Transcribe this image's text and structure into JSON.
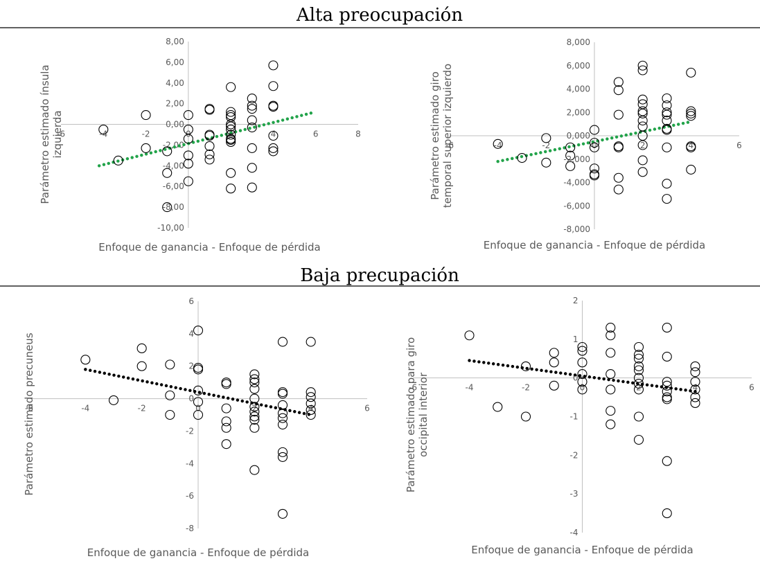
{
  "sections": {
    "top_title": "Alta preocupación",
    "bottom_title": "Baja precupación"
  },
  "chart_data": [
    {
      "type": "scatter",
      "title": "",
      "xlabel": "Enfoque de ganancia - Enfoque de pérdida",
      "ylabel_lines": [
        "Parámetro estimado ínsula",
        "izquierda"
      ],
      "xlim": [
        -6,
        8
      ],
      "ylim": [
        -10,
        8
      ],
      "x_ticks": [
        -6,
        -4,
        -2,
        0,
        2,
        4,
        6,
        8
      ],
      "x_tick_labels": [
        "-6",
        "-4",
        "-2",
        "0",
        "2",
        "4",
        "6",
        "8"
      ],
      "y_ticks": [
        -10,
        -8,
        -6,
        -4,
        -2,
        0,
        2,
        4,
        6,
        8
      ],
      "y_tick_labels": [
        "-10,00",
        "-8,00",
        "-6,00",
        "-4,00",
        "-2,00",
        "0,00",
        "2,00",
        "4,00",
        "6,00",
        "8,00"
      ],
      "trend_color": "#22a34a",
      "trendline": {
        "x": [
          -4.2,
          5.8
        ],
        "y": [
          -4.0,
          1.1
        ]
      },
      "points": [
        [
          -4,
          -0.5
        ],
        [
          -3.3,
          -3.5
        ],
        [
          -2,
          0.9
        ],
        [
          -2,
          -2.3
        ],
        [
          -1,
          -2.6
        ],
        [
          -1,
          -4.7
        ],
        [
          -1,
          -8.0
        ],
        [
          0,
          0.9
        ],
        [
          0,
          -0.5
        ],
        [
          0,
          -1.4
        ],
        [
          0,
          -3.0
        ],
        [
          0,
          -3.8
        ],
        [
          0,
          -5.5
        ],
        [
          1,
          1.5
        ],
        [
          1,
          1.4
        ],
        [
          1,
          -1.0
        ],
        [
          1,
          -1.1
        ],
        [
          1,
          -2.1
        ],
        [
          1,
          -2.9
        ],
        [
          1,
          -3.4
        ],
        [
          2,
          3.6
        ],
        [
          2,
          1.2
        ],
        [
          2,
          0.9
        ],
        [
          2,
          0.7
        ],
        [
          2,
          0.0
        ],
        [
          2,
          -0.2
        ],
        [
          2,
          -0.5
        ],
        [
          2,
          -1.0
        ],
        [
          2,
          -1.4
        ],
        [
          2,
          -1.5
        ],
        [
          2,
          -1.7
        ],
        [
          2,
          -4.7
        ],
        [
          2,
          -6.2
        ],
        [
          3,
          2.5
        ],
        [
          3,
          1.8
        ],
        [
          3,
          1.5
        ],
        [
          3,
          0.4
        ],
        [
          3,
          -0.3
        ],
        [
          3,
          -2.3
        ],
        [
          3,
          -4.2
        ],
        [
          3,
          -6.1
        ],
        [
          4,
          5.7
        ],
        [
          4,
          3.7
        ],
        [
          4,
          1.8
        ],
        [
          4,
          1.7
        ],
        [
          4,
          -1.1
        ],
        [
          4,
          -2.3
        ],
        [
          4,
          -2.6
        ]
      ]
    },
    {
      "type": "scatter",
      "title": "",
      "xlabel": "Enfoque de ganancia - Enfoque de pérdida",
      "ylabel_lines": [
        "Parámetro estimado giro",
        "temporal superior izquierdo"
      ],
      "xlim": [
        -6,
        6
      ],
      "ylim": [
        -8,
        8
      ],
      "x_ticks": [
        -6,
        -4,
        -2,
        0,
        2,
        4,
        6
      ],
      "x_tick_labels": [
        "-6",
        "-4",
        "-2",
        "0",
        "2",
        "4",
        "6"
      ],
      "y_ticks": [
        -8,
        -6,
        -4,
        -2,
        0,
        2,
        4,
        6,
        8
      ],
      "y_tick_labels": [
        "-8,000",
        "-6,000",
        "-4,000",
        "-2,000",
        "0,000",
        "2,000",
        "4,000",
        "6,000",
        "8,000"
      ],
      "trend_color": "#22a34a",
      "trendline": {
        "x": [
          -4,
          4
        ],
        "y": [
          -2.2,
          1.2
        ]
      },
      "points": [
        [
          -4,
          -0.7
        ],
        [
          -3,
          -1.9
        ],
        [
          -2,
          -0.2
        ],
        [
          -2,
          -2.3
        ],
        [
          -1,
          -1.0
        ],
        [
          -1,
          -1.7
        ],
        [
          -1,
          -2.6
        ],
        [
          0,
          0.5
        ],
        [
          0,
          -0.6
        ],
        [
          0,
          -1.0
        ],
        [
          0,
          -2.8
        ],
        [
          0,
          -3.3
        ],
        [
          0,
          -3.4
        ],
        [
          1,
          4.6
        ],
        [
          1,
          3.9
        ],
        [
          1,
          1.8
        ],
        [
          1,
          -0.9
        ],
        [
          1,
          -1.0
        ],
        [
          1,
          -3.6
        ],
        [
          1,
          -4.6
        ],
        [
          2,
          6.0
        ],
        [
          2,
          5.6
        ],
        [
          2,
          3.1
        ],
        [
          2,
          2.7
        ],
        [
          2,
          2.1
        ],
        [
          2,
          1.9
        ],
        [
          2,
          1.3
        ],
        [
          2,
          0.8
        ],
        [
          2,
          0.0
        ],
        [
          2,
          -0.8
        ],
        [
          2,
          -2.1
        ],
        [
          2,
          -3.1
        ],
        [
          3,
          3.2
        ],
        [
          3,
          2.6
        ],
        [
          3,
          2.0
        ],
        [
          3,
          1.8
        ],
        [
          3,
          1.3
        ],
        [
          3,
          0.6
        ],
        [
          3,
          0.5
        ],
        [
          3,
          -1.0
        ],
        [
          3,
          -4.1
        ],
        [
          3,
          -5.4
        ],
        [
          4,
          5.4
        ],
        [
          4,
          2.1
        ],
        [
          4,
          1.9
        ],
        [
          4,
          1.7
        ],
        [
          4,
          -0.9
        ],
        [
          4,
          -1.0
        ],
        [
          4,
          -2.9
        ]
      ]
    },
    {
      "type": "scatter",
      "title": "",
      "xlabel": "Enfoque de ganancia - Enfoque de pérdida",
      "ylabel_lines": [
        "Parámetro estimado precuneus"
      ],
      "xlim": [
        -6,
        6
      ],
      "ylim": [
        -8,
        6
      ],
      "x_ticks": [
        -6,
        -4,
        -2,
        0,
        2,
        4,
        6
      ],
      "x_tick_labels": [
        "-6",
        "-4",
        "-2",
        "0",
        "2",
        "4",
        "6"
      ],
      "y_ticks": [
        -8,
        -6,
        -4,
        -2,
        0,
        2,
        4,
        6
      ],
      "y_tick_labels": [
        "-8",
        "-6",
        "-4",
        "-2",
        "0",
        "2",
        "4",
        "6"
      ],
      "trend_color": "#000000",
      "trendline": {
        "x": [
          -4,
          4
        ],
        "y": [
          1.8,
          -1.0
        ]
      },
      "points": [
        [
          -4,
          2.4
        ],
        [
          -3,
          -0.1
        ],
        [
          -2,
          3.1
        ],
        [
          -2,
          2.0
        ],
        [
          -1,
          2.1
        ],
        [
          -1,
          0.2
        ],
        [
          -1,
          -1.0
        ],
        [
          0,
          4.2
        ],
        [
          0,
          1.9
        ],
        [
          0,
          1.8
        ],
        [
          0,
          0.5
        ],
        [
          0,
          -0.2
        ],
        [
          0,
          -1.0
        ],
        [
          1,
          1.0
        ],
        [
          1,
          0.9
        ],
        [
          1,
          -0.6
        ],
        [
          1,
          -1.4
        ],
        [
          1,
          -1.8
        ],
        [
          1,
          -2.8
        ],
        [
          2,
          1.5
        ],
        [
          2,
          1.2
        ],
        [
          2,
          1.0
        ],
        [
          2,
          0.6
        ],
        [
          2,
          0.0
        ],
        [
          2,
          -0.5
        ],
        [
          2,
          -0.8
        ],
        [
          2,
          -1.1
        ],
        [
          2,
          -1.3
        ],
        [
          2,
          -1.8
        ],
        [
          2,
          -4.4
        ],
        [
          3,
          3.5
        ],
        [
          3,
          0.4
        ],
        [
          3,
          0.3
        ],
        [
          3,
          -0.4
        ],
        [
          3,
          -0.9
        ],
        [
          3,
          -1.2
        ],
        [
          3,
          -1.6
        ],
        [
          3,
          -3.3
        ],
        [
          3,
          -3.6
        ],
        [
          3,
          -7.1
        ],
        [
          4,
          3.5
        ],
        [
          4,
          0.4
        ],
        [
          4,
          0.1
        ],
        [
          4,
          -0.3
        ],
        [
          4,
          -0.7
        ],
        [
          4,
          -1.0
        ]
      ]
    },
    {
      "type": "scatter",
      "title": "",
      "xlabel": "Enfoque de ganancia - Enfoque de pérdida",
      "ylabel_lines": [
        "Parámetro estimado para giro",
        "occipital interior"
      ],
      "xlim": [
        -6,
        6
      ],
      "ylim": [
        -4,
        2
      ],
      "x_ticks": [
        -6,
        -4,
        -2,
        0,
        2,
        4,
        6
      ],
      "x_tick_labels": [
        "-6",
        "-4",
        "-2",
        "0",
        "2",
        "4",
        "6"
      ],
      "y_ticks": [
        -4,
        -3,
        -2,
        -1,
        0,
        1,
        2
      ],
      "y_tick_labels": [
        "-4",
        "-3",
        "-2",
        "-1",
        "0",
        "1",
        "2"
      ],
      "trend_color": "#000000",
      "trendline": {
        "x": [
          -4,
          4
        ],
        "y": [
          0.45,
          -0.35
        ]
      },
      "points": [
        [
          -4,
          1.1
        ],
        [
          -3,
          -0.75
        ],
        [
          -2,
          0.3
        ],
        [
          -2,
          -1.0
        ],
        [
          -1,
          0.65
        ],
        [
          -1,
          0.4
        ],
        [
          -1,
          -0.2
        ],
        [
          0,
          0.8
        ],
        [
          0,
          0.7
        ],
        [
          0,
          0.4
        ],
        [
          0,
          0.1
        ],
        [
          0,
          -0.1
        ],
        [
          0,
          -0.3
        ],
        [
          1,
          1.3
        ],
        [
          1,
          1.1
        ],
        [
          1,
          0.65
        ],
        [
          1,
          0.1
        ],
        [
          1,
          -0.3
        ],
        [
          1,
          -0.85
        ],
        [
          1,
          -1.2
        ],
        [
          2,
          0.8
        ],
        [
          2,
          0.6
        ],
        [
          2,
          0.5
        ],
        [
          2,
          0.3
        ],
        [
          2,
          0.2
        ],
        [
          2,
          0.0
        ],
        [
          2,
          -0.15
        ],
        [
          2,
          -0.3
        ],
        [
          2,
          -1.0
        ],
        [
          2,
          -1.6
        ],
        [
          3,
          1.3
        ],
        [
          3,
          0.55
        ],
        [
          3,
          -0.1
        ],
        [
          3,
          -0.2
        ],
        [
          3,
          -0.35
        ],
        [
          3,
          -0.5
        ],
        [
          3,
          -0.55
        ],
        [
          3,
          -2.15
        ],
        [
          3,
          -3.5
        ],
        [
          4,
          0.3
        ],
        [
          4,
          0.15
        ],
        [
          4,
          -0.1
        ],
        [
          4,
          -0.3
        ],
        [
          4,
          -0.5
        ],
        [
          4,
          -0.65
        ]
      ]
    }
  ]
}
